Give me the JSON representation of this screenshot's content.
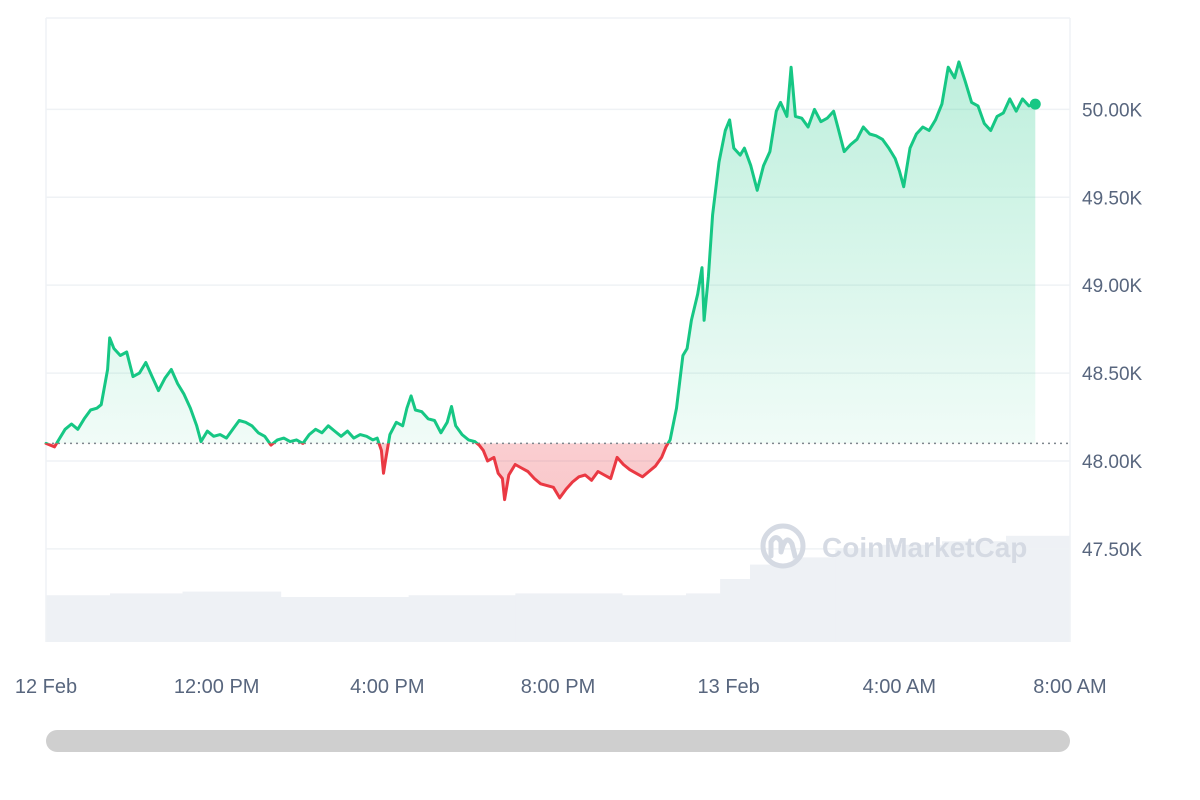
{
  "chart_data": {
    "type": "line",
    "baseline": 48100,
    "ylim": [
      46970,
      50520
    ],
    "y_ticks": [
      {
        "value": 47500,
        "label": "47.50K"
      },
      {
        "value": 48000,
        "label": "48.00K"
      },
      {
        "value": 48500,
        "label": "48.50K"
      },
      {
        "value": 49000,
        "label": "49.00K"
      },
      {
        "value": 49500,
        "label": "49.50K"
      },
      {
        "value": 50000,
        "label": "50.00K"
      }
    ],
    "x_range_hours": [
      0,
      24
    ],
    "x_ticks": [
      {
        "hour": 0,
        "label": "12 Feb"
      },
      {
        "hour": 4,
        "label": "12:00 PM"
      },
      {
        "hour": 8,
        "label": "4:00 PM"
      },
      {
        "hour": 12,
        "label": "8:00 PM"
      },
      {
        "hour": 16,
        "label": "13 Feb"
      },
      {
        "hour": 20,
        "label": "4:00 AM"
      },
      {
        "hour": 24,
        "label": "8:00 AM"
      }
    ],
    "series": [
      {
        "points": [
          [
            0.0,
            48100
          ],
          [
            0.2,
            48080
          ],
          [
            0.3,
            48120
          ],
          [
            0.45,
            48180
          ],
          [
            0.6,
            48210
          ],
          [
            0.75,
            48180
          ],
          [
            0.9,
            48240
          ],
          [
            1.05,
            48290
          ],
          [
            1.2,
            48300
          ],
          [
            1.3,
            48320
          ],
          [
            1.45,
            48520
          ],
          [
            1.5,
            48700
          ],
          [
            1.6,
            48640
          ],
          [
            1.75,
            48600
          ],
          [
            1.9,
            48620
          ],
          [
            2.05,
            48480
          ],
          [
            2.2,
            48500
          ],
          [
            2.35,
            48560
          ],
          [
            2.5,
            48480
          ],
          [
            2.65,
            48400
          ],
          [
            2.8,
            48470
          ],
          [
            2.95,
            48520
          ],
          [
            3.1,
            48440
          ],
          [
            3.25,
            48380
          ],
          [
            3.4,
            48300
          ],
          [
            3.55,
            48200
          ],
          [
            3.65,
            48110
          ],
          [
            3.8,
            48170
          ],
          [
            3.95,
            48140
          ],
          [
            4.1,
            48150
          ],
          [
            4.25,
            48130
          ],
          [
            4.4,
            48180
          ],
          [
            4.55,
            48230
          ],
          [
            4.7,
            48220
          ],
          [
            4.85,
            48200
          ],
          [
            5.0,
            48160
          ],
          [
            5.15,
            48140
          ],
          [
            5.3,
            48090
          ],
          [
            5.45,
            48120
          ],
          [
            5.6,
            48130
          ],
          [
            5.75,
            48110
          ],
          [
            5.9,
            48120
          ],
          [
            6.05,
            48100
          ],
          [
            6.2,
            48150
          ],
          [
            6.35,
            48180
          ],
          [
            6.5,
            48160
          ],
          [
            6.65,
            48200
          ],
          [
            6.8,
            48170
          ],
          [
            6.95,
            48140
          ],
          [
            7.1,
            48170
          ],
          [
            7.25,
            48130
          ],
          [
            7.4,
            48150
          ],
          [
            7.55,
            48140
          ],
          [
            7.7,
            48120
          ],
          [
            7.8,
            48130
          ],
          [
            7.9,
            48060
          ],
          [
            7.95,
            47930
          ],
          [
            8.0,
            48010
          ],
          [
            8.1,
            48150
          ],
          [
            8.25,
            48220
          ],
          [
            8.4,
            48200
          ],
          [
            8.5,
            48300
          ],
          [
            8.6,
            48370
          ],
          [
            8.7,
            48290
          ],
          [
            8.85,
            48280
          ],
          [
            9.0,
            48240
          ],
          [
            9.15,
            48230
          ],
          [
            9.3,
            48160
          ],
          [
            9.45,
            48220
          ],
          [
            9.55,
            48310
          ],
          [
            9.65,
            48200
          ],
          [
            9.8,
            48150
          ],
          [
            9.95,
            48120
          ],
          [
            10.1,
            48110
          ],
          [
            10.2,
            48090
          ],
          [
            10.3,
            48060
          ],
          [
            10.4,
            48000
          ],
          [
            10.55,
            48020
          ],
          [
            10.65,
            47930
          ],
          [
            10.75,
            47900
          ],
          [
            10.8,
            47780
          ],
          [
            10.9,
            47920
          ],
          [
            11.05,
            47980
          ],
          [
            11.2,
            47960
          ],
          [
            11.35,
            47940
          ],
          [
            11.5,
            47900
          ],
          [
            11.65,
            47870
          ],
          [
            11.8,
            47860
          ],
          [
            11.95,
            47850
          ],
          [
            12.1,
            47790
          ],
          [
            12.25,
            47840
          ],
          [
            12.4,
            47880
          ],
          [
            12.55,
            47910
          ],
          [
            12.7,
            47920
          ],
          [
            12.85,
            47890
          ],
          [
            13.0,
            47940
          ],
          [
            13.15,
            47920
          ],
          [
            13.3,
            47900
          ],
          [
            13.45,
            48020
          ],
          [
            13.6,
            47980
          ],
          [
            13.75,
            47950
          ],
          [
            13.9,
            47930
          ],
          [
            14.05,
            47910
          ],
          [
            14.2,
            47940
          ],
          [
            14.35,
            47970
          ],
          [
            14.5,
            48020
          ],
          [
            14.6,
            48080
          ],
          [
            14.7,
            48120
          ],
          [
            14.85,
            48300
          ],
          [
            15.0,
            48600
          ],
          [
            15.1,
            48640
          ],
          [
            15.2,
            48800
          ],
          [
            15.35,
            48950
          ],
          [
            15.45,
            49100
          ],
          [
            15.5,
            48800
          ],
          [
            15.6,
            49050
          ],
          [
            15.7,
            49400
          ],
          [
            15.85,
            49700
          ],
          [
            16.0,
            49880
          ],
          [
            16.1,
            49940
          ],
          [
            16.2,
            49780
          ],
          [
            16.35,
            49740
          ],
          [
            16.45,
            49780
          ],
          [
            16.6,
            49680
          ],
          [
            16.75,
            49540
          ],
          [
            16.9,
            49680
          ],
          [
            17.05,
            49760
          ],
          [
            17.2,
            49990
          ],
          [
            17.3,
            50040
          ],
          [
            17.45,
            49960
          ],
          [
            17.55,
            50240
          ],
          [
            17.65,
            49960
          ],
          [
            17.8,
            49950
          ],
          [
            17.95,
            49900
          ],
          [
            18.1,
            50000
          ],
          [
            18.25,
            49930
          ],
          [
            18.4,
            49950
          ],
          [
            18.55,
            49990
          ],
          [
            18.65,
            49900
          ],
          [
            18.8,
            49760
          ],
          [
            18.95,
            49800
          ],
          [
            19.1,
            49830
          ],
          [
            19.25,
            49900
          ],
          [
            19.4,
            49860
          ],
          [
            19.55,
            49850
          ],
          [
            19.7,
            49830
          ],
          [
            19.85,
            49780
          ],
          [
            20.0,
            49720
          ],
          [
            20.1,
            49650
          ],
          [
            20.2,
            49560
          ],
          [
            20.35,
            49780
          ],
          [
            20.5,
            49860
          ],
          [
            20.65,
            49900
          ],
          [
            20.8,
            49880
          ],
          [
            20.95,
            49940
          ],
          [
            21.1,
            50030
          ],
          [
            21.25,
            50240
          ],
          [
            21.4,
            50180
          ],
          [
            21.5,
            50270
          ],
          [
            21.65,
            50160
          ],
          [
            21.8,
            50040
          ],
          [
            21.95,
            50020
          ],
          [
            22.1,
            49920
          ],
          [
            22.25,
            49880
          ],
          [
            22.4,
            49960
          ],
          [
            22.55,
            49980
          ],
          [
            22.7,
            50060
          ],
          [
            22.85,
            49990
          ],
          [
            23.0,
            50060
          ],
          [
            23.15,
            50020
          ],
          [
            23.3,
            50030
          ]
        ]
      }
    ],
    "volume_levels": [
      [
        0.0,
        0.26
      ],
      [
        1.5,
        0.27
      ],
      [
        3.2,
        0.28
      ],
      [
        5.5,
        0.25
      ],
      [
        8.5,
        0.26
      ],
      [
        11.0,
        0.27
      ],
      [
        13.5,
        0.26
      ],
      [
        15.0,
        0.27
      ],
      [
        15.8,
        0.35
      ],
      [
        16.5,
        0.43
      ],
      [
        17.5,
        0.47
      ],
      [
        18.5,
        0.52
      ],
      [
        19.5,
        0.54
      ],
      [
        21.0,
        0.56
      ],
      [
        22.5,
        0.59
      ],
      [
        24.0,
        0.59
      ]
    ],
    "colors": {
      "up_line": "#16c784",
      "down_line": "#ea3943",
      "up_fill": "#16c784",
      "down_fill": "#ea3943",
      "grid": "#eff2f5",
      "baseline": "#7f868e",
      "volume": "#eef1f5",
      "tick_text": "#58667e",
      "watermark": "#d5dae3"
    },
    "watermark": "CoinMarketCap",
    "grid": true
  }
}
